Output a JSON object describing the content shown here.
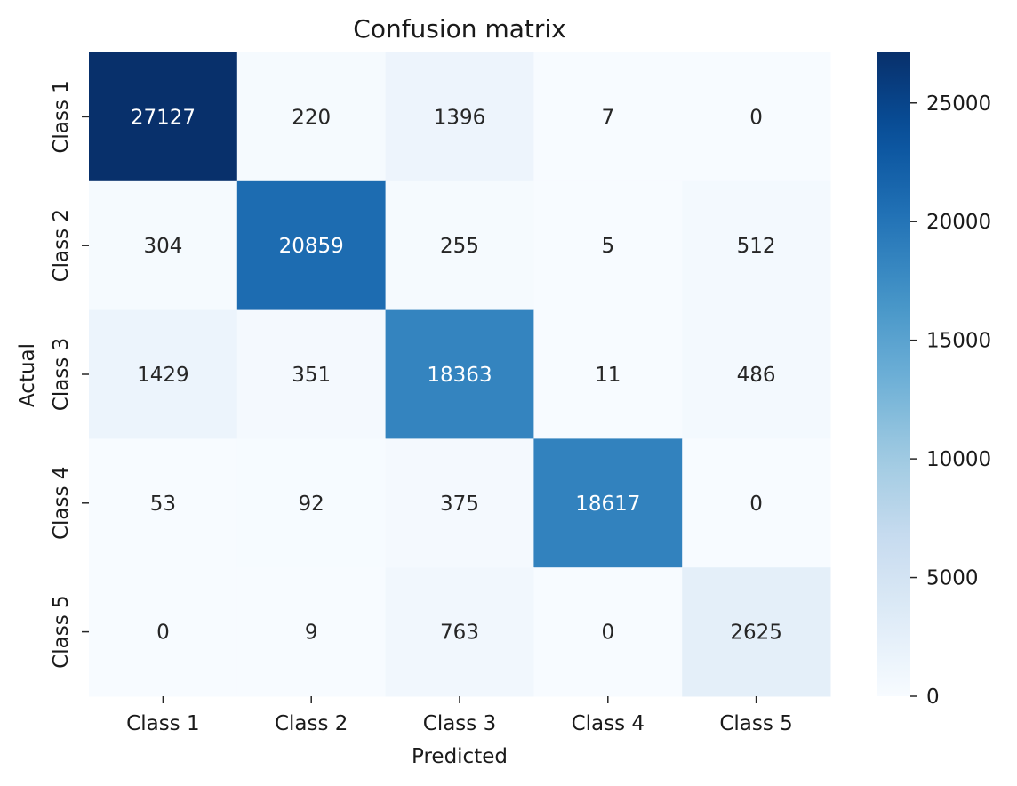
{
  "chart_data": {
    "type": "heatmap",
    "title": "Confusion matrix",
    "xlabel": "Predicted",
    "ylabel": "Actual",
    "x_categories": [
      "Class 1",
      "Class 2",
      "Class 3",
      "Class 4",
      "Class 5"
    ],
    "y_categories": [
      "Class 1",
      "Class 2",
      "Class 3",
      "Class 4",
      "Class 5"
    ],
    "values": [
      [
        27127,
        220,
        1396,
        7,
        0
      ],
      [
        304,
        20859,
        255,
        5,
        512
      ],
      [
        1429,
        351,
        18363,
        11,
        486
      ],
      [
        53,
        92,
        375,
        18617,
        0
      ],
      [
        0,
        9,
        763,
        0,
        2625
      ]
    ],
    "colorbar": {
      "min": 0,
      "max": 27127,
      "ticks": [
        0,
        5000,
        10000,
        15000,
        20000,
        25000
      ],
      "colormap": "Blues"
    },
    "grid": false
  }
}
